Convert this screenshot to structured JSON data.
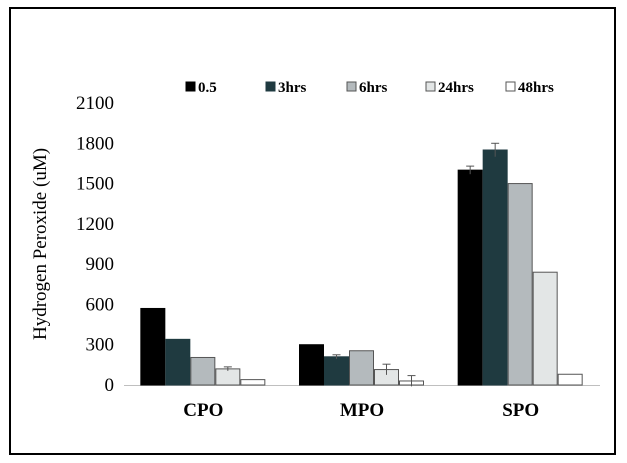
{
  "chart_data": {
    "type": "bar",
    "title": "",
    "xlabel": "",
    "ylabel": "Hydrogen Peroxide (uM)",
    "ylim": [
      0,
      2100
    ],
    "yticks": [
      0,
      300,
      600,
      900,
      1200,
      1500,
      1800,
      2100
    ],
    "grid": false,
    "legend_position": "top",
    "categories": [
      "CPO",
      "MPO",
      "SPO"
    ],
    "series": [
      {
        "name": "0.5",
        "color": "#000000",
        "values": [
          570,
          300,
          1600
        ],
        "errors": [
          0,
          0,
          30
        ]
      },
      {
        "name": "3hrs",
        "color": "#1f3a40",
        "values": [
          340,
          210,
          1750
        ],
        "errors": [
          0,
          15,
          50
        ]
      },
      {
        "name": "6hrs",
        "color": "#b4babd",
        "values": [
          205,
          255,
          1500
        ],
        "errors": [
          0,
          0,
          0
        ]
      },
      {
        "name": "24hrs",
        "color": "#e3e6e6",
        "values": [
          120,
          115,
          840
        ],
        "errors": [
          15,
          40,
          0
        ]
      },
      {
        "name": "48hrs",
        "color": "#ffffff",
        "values": [
          40,
          30,
          80
        ],
        "errors": [
          0,
          40,
          0
        ]
      }
    ]
  }
}
